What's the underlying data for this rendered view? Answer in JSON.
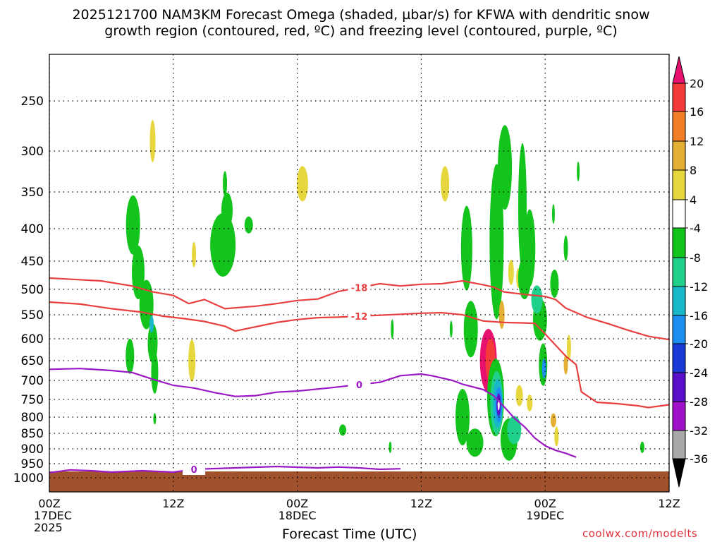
{
  "chart_data": {
    "type": "heatmap",
    "title_line1": "2025121700 NAM3KM Forecast Omega (shaded, µbar/s) for KFWA with dendritic snow",
    "title_line2": "growth region (contoured, red, ºC) and freezing level (contoured, purple, ºC)",
    "xlabel": "Forecast Time (UTC)",
    "credit": "coolwx.com/modelts",
    "y_axis": {
      "unit": "hPa",
      "reversed": true,
      "range": [
        200,
        1050
      ],
      "ticks": [
        250,
        300,
        350,
        400,
        450,
        500,
        550,
        600,
        650,
        700,
        750,
        800,
        850,
        900,
        950,
        1000
      ]
    },
    "x_axis": {
      "range_hours": [
        0,
        60
      ],
      "ticks": [
        {
          "hour": 0,
          "lines": [
            "00Z",
            "17DEC",
            "2025"
          ]
        },
        {
          "hour": 12,
          "lines": [
            "12Z"
          ]
        },
        {
          "hour": 24,
          "lines": [
            "00Z",
            "18DEC"
          ]
        },
        {
          "hour": 36,
          "lines": [
            "12Z"
          ]
        },
        {
          "hour": 48,
          "lines": [
            "00Z",
            "19DEC"
          ]
        },
        {
          "hour": 60,
          "lines": [
            "12Z"
          ]
        }
      ]
    },
    "grid": true,
    "colorbar": {
      "labels": [
        20,
        16,
        12,
        8,
        4,
        -4,
        -8,
        -12,
        -16,
        -20,
        -24,
        -28,
        -32,
        -36
      ],
      "colors": [
        "#e8106e",
        "#f53a3a",
        "#f07f27",
        "#e3b035",
        "#e7d73f",
        "#ffffff",
        "#13c41c",
        "#1fd08a",
        "#19b8c8",
        "#1c8ef0",
        "#1a3bd8",
        "#5a0fc8",
        "#a010c8",
        "#a8a8a8",
        "#000000"
      ]
    },
    "contours": [
      {
        "label": "-18",
        "color": "#e84040",
        "points": [
          [
            0,
            480
          ],
          [
            5,
            485
          ],
          [
            8,
            494
          ],
          [
            10,
            505
          ],
          [
            12,
            512
          ],
          [
            13.5,
            528
          ],
          [
            15,
            520
          ],
          [
            17,
            538
          ],
          [
            20,
            533
          ],
          [
            22,
            528
          ],
          [
            24,
            522
          ],
          [
            26,
            519
          ],
          [
            28,
            504
          ],
          [
            30,
            497
          ],
          [
            32,
            490
          ],
          [
            34,
            494
          ],
          [
            36,
            491
          ],
          [
            38,
            490
          ],
          [
            40,
            485
          ],
          [
            42,
            492
          ],
          [
            43,
            496
          ],
          [
            44,
            505
          ],
          [
            46,
            510
          ],
          [
            48,
            514
          ],
          [
            49,
            520
          ],
          [
            50,
            537
          ],
          [
            52,
            555
          ],
          [
            54,
            568
          ],
          [
            56,
            582
          ],
          [
            58,
            595
          ],
          [
            60,
            602
          ]
        ]
      },
      {
        "label": "-12",
        "color": "#e84040",
        "points": [
          [
            0,
            525
          ],
          [
            3,
            529
          ],
          [
            6,
            538
          ],
          [
            9,
            545
          ],
          [
            11,
            553
          ],
          [
            13,
            558
          ],
          [
            15,
            564
          ],
          [
            17,
            574
          ],
          [
            18,
            584
          ],
          [
            20,
            575
          ],
          [
            22,
            566
          ],
          [
            24,
            560
          ],
          [
            26,
            556
          ],
          [
            28,
            555
          ],
          [
            30,
            553
          ],
          [
            32,
            551
          ],
          [
            34,
            549
          ],
          [
            36,
            547
          ],
          [
            38,
            546
          ],
          [
            40,
            550
          ],
          [
            42,
            563
          ],
          [
            44,
            566
          ],
          [
            46,
            567
          ],
          [
            47,
            568
          ],
          [
            48,
            590
          ],
          [
            50,
            640
          ],
          [
            51,
            660
          ],
          [
            51.5,
            730
          ],
          [
            53,
            758
          ],
          [
            55,
            762
          ],
          [
            57,
            768
          ],
          [
            58,
            773
          ],
          [
            60,
            765
          ]
        ]
      },
      {
        "label": "0",
        "color": "#9b19c4",
        "points": [
          [
            0,
            672
          ],
          [
            3,
            670
          ],
          [
            6,
            675
          ],
          [
            8,
            680
          ],
          [
            10,
            697
          ],
          [
            12,
            713
          ],
          [
            14,
            720
          ],
          [
            16,
            732
          ],
          [
            18,
            742
          ],
          [
            20,
            740
          ],
          [
            22,
            731
          ],
          [
            24,
            728
          ],
          [
            27,
            720
          ],
          [
            30,
            711
          ],
          [
            32,
            705
          ],
          [
            34,
            688
          ],
          [
            36,
            684
          ],
          [
            37,
            688
          ],
          [
            39,
            700
          ],
          [
            40,
            710
          ],
          [
            42,
            724
          ],
          [
            43,
            740
          ],
          [
            44,
            770
          ],
          [
            45,
            803
          ],
          [
            46,
            830
          ],
          [
            47,
            865
          ],
          [
            48,
            890
          ],
          [
            49,
            905
          ],
          [
            50,
            915
          ],
          [
            51,
            928
          ]
        ]
      },
      {
        "label": "0",
        "color": "#9b19c4",
        "points": [
          [
            0,
            982
          ],
          [
            2,
            972
          ],
          [
            4,
            975
          ],
          [
            6,
            980
          ],
          [
            9,
            975
          ],
          [
            12,
            980
          ],
          [
            14,
            970
          ],
          [
            18,
            965
          ],
          [
            22,
            960
          ],
          [
            26,
            965
          ],
          [
            28,
            962
          ],
          [
            30,
            965
          ],
          [
            32,
            970
          ],
          [
            34,
            968
          ]
        ]
      }
    ]
  }
}
